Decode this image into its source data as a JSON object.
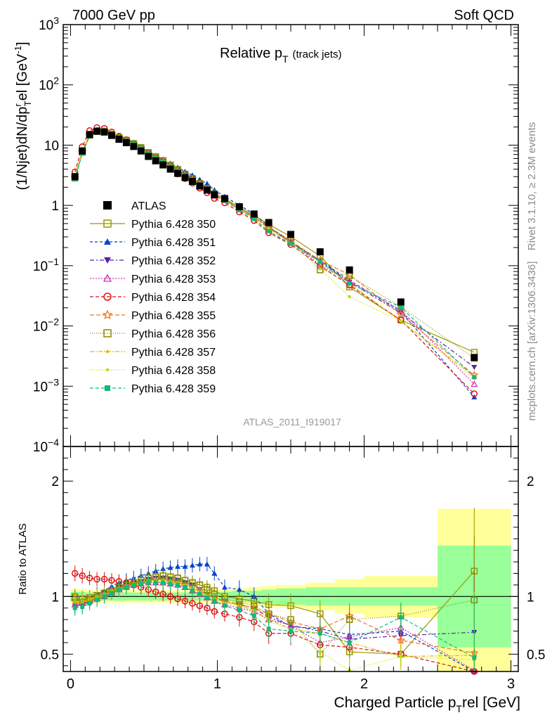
{
  "header": {
    "left": "7000 GeV pp",
    "right": "Soft QCD"
  },
  "plot_title": {
    "main": "Relative p",
    "sub": "T",
    "suffix": "(track jets)"
  },
  "side_labels": {
    "rivet": "Rivet 3.1.10, ≥ 2.3M events",
    "mcplots": "mcplots.cern.ch [arXiv:1306.3436]"
  },
  "analysis_id": "ATLAS_2011_I919017",
  "y_label_main": "(1/Njet)dN/dp",
  "y_label_ratio": "Ratio to ATLAS",
  "x_label": "Charged Particle p",
  "x_label_sub": "T",
  "x_label_sup": "rel",
  "x_label_unit": "[GeV]",
  "colors": {
    "data": "#000000",
    "band_inner": "#99ff99",
    "band_outer": "#ffff99"
  },
  "chart_data": {
    "type": "scatter",
    "x": [
      0.03,
      0.08,
      0.13,
      0.18,
      0.23,
      0.28,
      0.33,
      0.38,
      0.43,
      0.48,
      0.53,
      0.58,
      0.63,
      0.68,
      0.73,
      0.78,
      0.83,
      0.88,
      0.93,
      0.98,
      1.05,
      1.15,
      1.25,
      1.35,
      1.5,
      1.7,
      1.9,
      2.25,
      2.75
    ],
    "x_bin_edges": [
      0.0,
      0.05,
      0.1,
      0.15,
      0.2,
      0.25,
      0.3,
      0.35,
      0.4,
      0.45,
      0.5,
      0.55,
      0.6,
      0.65,
      0.7,
      0.75,
      0.8,
      0.85,
      0.9,
      0.95,
      1.0,
      1.1,
      1.2,
      1.3,
      1.4,
      1.6,
      1.8,
      2.0,
      2.5,
      3.0
    ],
    "data_values": [
      3.0,
      8.0,
      15.0,
      17.0,
      16.5,
      14.5,
      12.5,
      11.0,
      9.5,
      8.0,
      6.5,
      5.5,
      4.7,
      4.0,
      3.4,
      2.9,
      2.5,
      2.1,
      1.8,
      1.5,
      1.3,
      0.95,
      0.72,
      0.52,
      0.33,
      0.17,
      0.085,
      0.025,
      0.003
    ],
    "band_inner": [
      0.04,
      0.04,
      0.035,
      0.035,
      0.035,
      0.035,
      0.035,
      0.035,
      0.035,
      0.035,
      0.035,
      0.035,
      0.035,
      0.035,
      0.035,
      0.035,
      0.035,
      0.035,
      0.035,
      0.035,
      0.04,
      0.05,
      0.05,
      0.06,
      0.07,
      0.08,
      0.08,
      0.08,
      0.44
    ],
    "band_outer": [
      0.06,
      0.06,
      0.055,
      0.055,
      0.055,
      0.055,
      0.055,
      0.055,
      0.055,
      0.055,
      0.055,
      0.055,
      0.055,
      0.055,
      0.055,
      0.055,
      0.055,
      0.055,
      0.055,
      0.055,
      0.06,
      0.07,
      0.08,
      0.09,
      0.1,
      0.12,
      0.15,
      0.18,
      0.76
    ],
    "series": [
      {
        "name": "Pythia 6.428 350",
        "color": "#999900",
        "marker": "square-open",
        "dash": "",
        "ratio": [
          1.0,
          0.95,
          0.97,
          0.99,
          1.02,
          1.05,
          1.07,
          1.1,
          1.12,
          1.14,
          1.16,
          1.17,
          1.18,
          1.17,
          1.16,
          1.14,
          1.12,
          1.1,
          1.08,
          1.05,
          1.0,
          0.98,
          0.96,
          0.93,
          0.92,
          0.85,
          0.52,
          0.5,
          1.22
        ]
      },
      {
        "name": "Pythia 6.428 351",
        "color": "#0044cc",
        "marker": "triangle-up",
        "dash": "4,3",
        "ratio": [
          0.94,
          0.95,
          0.99,
          1.02,
          1.05,
          1.09,
          1.12,
          1.14,
          1.16,
          1.18,
          1.2,
          1.22,
          1.24,
          1.25,
          1.26,
          1.26,
          1.27,
          1.28,
          1.28,
          1.2,
          1.08,
          1.06,
          1.0,
          0.85,
          0.74,
          0.72,
          0.67,
          0.7,
          0.22
        ]
      },
      {
        "name": "Pythia 6.428 352",
        "color": "#5522aa",
        "marker": "triangle-down",
        "dash": "6,3,2,3",
        "ratio": [
          0.92,
          0.93,
          0.96,
          0.99,
          1.02,
          1.05,
          1.08,
          1.1,
          1.12,
          1.13,
          1.15,
          1.16,
          1.16,
          1.15,
          1.14,
          1.12,
          1.1,
          1.06,
          1.02,
          0.99,
          0.96,
          0.93,
          0.9,
          0.82,
          0.75,
          0.7,
          0.63,
          0.66,
          0.69
        ]
      },
      {
        "name": "Pythia 6.428 353",
        "color": "#cc33aa",
        "marker": "triangle-open",
        "dash": "2,2",
        "ratio": [
          0.93,
          0.94,
          0.96,
          0.98,
          1.0,
          1.03,
          1.06,
          1.08,
          1.1,
          1.11,
          1.12,
          1.12,
          1.12,
          1.11,
          1.1,
          1.08,
          1.05,
          1.02,
          0.99,
          0.96,
          0.93,
          0.9,
          0.87,
          0.8,
          0.75,
          0.6,
          0.65,
          0.73,
          0.36
        ]
      },
      {
        "name": "Pythia 6.428 354",
        "color": "#dd1111",
        "marker": "circle-open",
        "dash": "5,3",
        "ratio": [
          1.2,
          1.18,
          1.16,
          1.15,
          1.15,
          1.14,
          1.13,
          1.12,
          1.1,
          1.08,
          1.06,
          1.04,
          1.02,
          1.0,
          0.98,
          0.96,
          0.94,
          0.92,
          0.9,
          0.87,
          0.85,
          0.82,
          0.78,
          0.68,
          0.68,
          0.58,
          0.56,
          0.5,
          0.25
        ]
      },
      {
        "name": "Pythia 6.428 355",
        "color": "#ee7722",
        "marker": "star-open",
        "dash": "6,3",
        "ratio": [
          0.96,
          0.96,
          0.98,
          1.0,
          1.02,
          1.05,
          1.07,
          1.09,
          1.11,
          1.12,
          1.13,
          1.14,
          1.14,
          1.13,
          1.12,
          1.1,
          1.08,
          1.05,
          1.02,
          0.99,
          0.96,
          0.93,
          0.9,
          0.85,
          0.78,
          0.72,
          0.83,
          0.62,
          0.51
        ]
      },
      {
        "name": "Pythia 6.428 356",
        "color": "#888800",
        "marker": "square-open",
        "dash": "1,2",
        "ratio": [
          0.99,
          0.98,
          0.99,
          1.01,
          1.03,
          1.05,
          1.08,
          1.1,
          1.12,
          1.14,
          1.16,
          1.17,
          1.18,
          1.17,
          1.16,
          1.14,
          1.12,
          1.1,
          1.06,
          1.02,
          0.98,
          0.95,
          0.92,
          0.85,
          0.8,
          0.5,
          0.8,
          0.83,
          0.97
        ]
      },
      {
        "name": "Pythia 6.428 357",
        "color": "#ddbb00",
        "marker": "dot",
        "dash": "6,2,2,2",
        "ratio": [
          0.95,
          0.95,
          0.97,
          0.99,
          1.01,
          1.04,
          1.06,
          1.08,
          1.1,
          1.11,
          1.12,
          1.13,
          1.13,
          1.12,
          1.11,
          1.09,
          1.07,
          1.04,
          1.01,
          0.98,
          0.95,
          0.92,
          0.88,
          0.8,
          0.72,
          0.68,
          0.6,
          0.48,
          0.49
        ]
      },
      {
        "name": "Pythia 6.428 358",
        "color": "#bbdd00",
        "marker": "dot",
        "dash": "1,2",
        "ratio": [
          0.96,
          0.96,
          0.98,
          1.0,
          1.02,
          1.05,
          1.07,
          1.09,
          1.11,
          1.12,
          1.13,
          1.14,
          1.14,
          1.13,
          1.12,
          1.1,
          1.07,
          1.04,
          1.01,
          0.98,
          0.95,
          0.92,
          0.88,
          0.78,
          0.72,
          0.52,
          0.36,
          0.48,
          0.45
        ]
      },
      {
        "name": "Pythia 6.428 359",
        "color": "#11bb77",
        "marker": "square",
        "dash": "5,3",
        "ratio": [
          0.9,
          0.91,
          0.94,
          0.97,
          1.0,
          1.03,
          1.06,
          1.08,
          1.1,
          1.11,
          1.12,
          1.12,
          1.12,
          1.11,
          1.1,
          1.08,
          1.05,
          1.02,
          0.99,
          0.96,
          0.92,
          0.88,
          0.83,
          0.72,
          0.7,
          0.68,
          0.6,
          0.82,
          0.47
        ]
      }
    ],
    "main_y_scale": "log",
    "main_ylim": [
      0.0001,
      1000
    ],
    "main_y_ticks": [
      "10^-4",
      "10^-3",
      "10^-2",
      "10^-1",
      "1",
      "10",
      "10^2",
      "10^3"
    ],
    "ratio_ylim": [
      0.35,
      2.3
    ],
    "ratio_y_ticks": [
      "0.5",
      "1",
      "2"
    ],
    "xlim": [
      -0.05,
      3.05
    ],
    "x_ticks": [
      "0",
      "1",
      "2",
      "3"
    ],
    "legend_position": "middle-left",
    "data_label": "ATLAS"
  }
}
